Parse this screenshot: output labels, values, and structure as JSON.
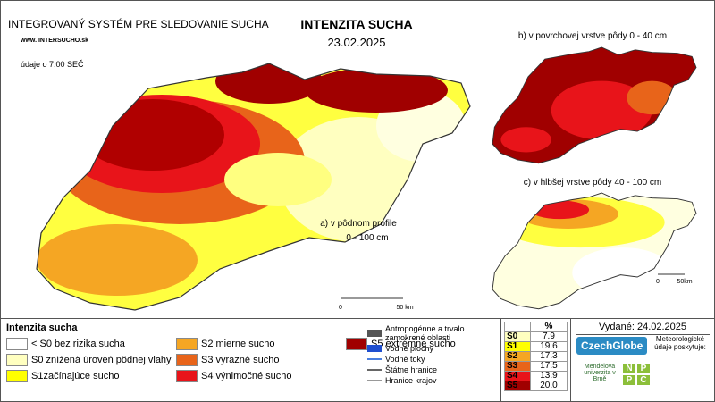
{
  "header": {
    "system": "INTEGROVANÝ SYSTÉM PRE SLEDOVANIE SUCHA",
    "website": "www. INTERSUCHO.sk",
    "time_note": "údaje o 7:00 SEČ",
    "title": "INTENZITA SUCHA",
    "date": "23.02.2025"
  },
  "maps": {
    "main": {
      "label_line1": "a) v pôdnom profile",
      "label_line2": "0 - 100 cm",
      "scale_start": "0",
      "scale_end": "50 km"
    },
    "top": {
      "label": "b) v povrchovej vrstve pôdy 0 - 40 cm"
    },
    "deep": {
      "label": "c) v hlbšej vrstve pôdy 40 - 100 cm",
      "scale_start": "0",
      "scale_end": "50km"
    }
  },
  "legend": {
    "title": "Intenzita sucha",
    "items": [
      {
        "label": "< S0 bez rizika sucha",
        "color": "#ffffff"
      },
      {
        "label": "S0 znížená úroveň pôdnej vlahy",
        "color": "#ffffc0"
      },
      {
        "label": "S1začínajúce sucho",
        "color": "#ffff00"
      },
      {
        "label": "S2 mierne sucho",
        "color": "#f5a623"
      },
      {
        "label": "S3 výrazné sucho",
        "color": "#e8641a"
      },
      {
        "label": "S4 výnimočné sucho",
        "color": "#e8141a"
      },
      {
        "label": "S5 extrémne sucho",
        "color": "#a00000"
      }
    ]
  },
  "symbols": [
    {
      "label": "Antropogénne a trvalo zamokrené oblasti",
      "color": "#555555"
    },
    {
      "label": "Vodné plochy",
      "color": "#1f4fd0"
    },
    {
      "label": "Vodné toky",
      "color": "#4a7fe0"
    },
    {
      "label": "Štátne hranice",
      "color": "#666666"
    },
    {
      "label": "Hranice krajov",
      "color": "#999999"
    }
  ],
  "percent_table": {
    "header": "%",
    "rows": [
      {
        "class": "S0",
        "value": "7.9",
        "color": "#ffffc0"
      },
      {
        "class": "S1",
        "value": "19.6",
        "color": "#ffff00"
      },
      {
        "class": "S2",
        "value": "17.3",
        "color": "#f5a623"
      },
      {
        "class": "S3",
        "value": "17.5",
        "color": "#e8641a"
      },
      {
        "class": "S4",
        "value": "13.9",
        "color": "#e8141a"
      },
      {
        "class": "S5",
        "value": "20.0",
        "color": "#a00000"
      }
    ]
  },
  "issued": "Vydané: 24.02.2025",
  "logos": {
    "czechglobe": "CzechGlobe",
    "meteo": "Meteorologické údaje poskytuje:",
    "mendel": "Mendelova univerzita v Brně",
    "nppc": [
      "N",
      "P",
      "P",
      "C"
    ]
  }
}
